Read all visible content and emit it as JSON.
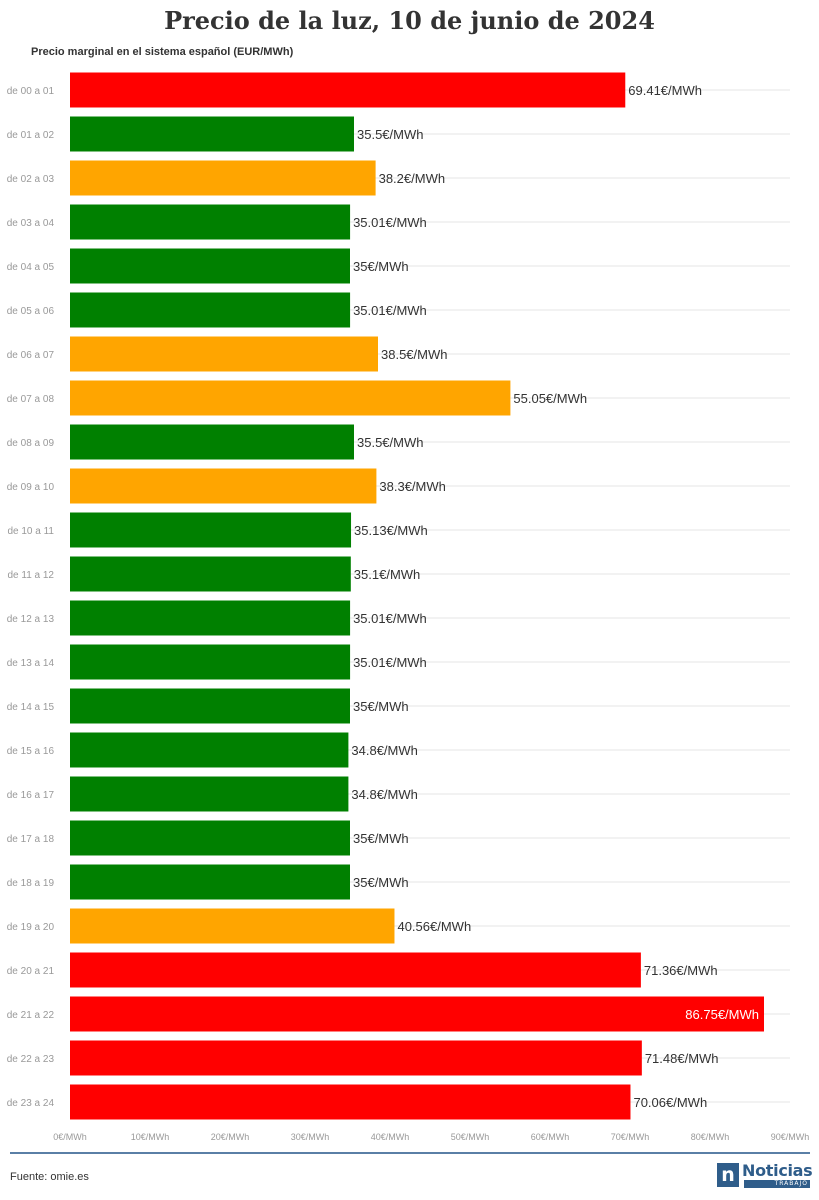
{
  "header": {
    "title": "Precio de la luz, 10 de junio de 2024",
    "subtitle": "Precio marginal en el sistema español (EUR/MWh)"
  },
  "footer": {
    "source": "Fuente: omie.es",
    "logo_mark": "n",
    "logo_word": "Noticias",
    "logo_sub": "TRABAJO"
  },
  "colors": {
    "high": "#ff0000",
    "medium": "#ffa500",
    "low": "#008000",
    "grid": "#e6e6e6",
    "tick": "#999999",
    "label": "#333333"
  },
  "chart_data": {
    "type": "bar",
    "orientation": "horizontal",
    "title": "Precio de la luz, 10 de junio de 2024",
    "subtitle": "Precio marginal en el sistema español (EUR/MWh)",
    "categories": [
      "de 00 a 01",
      "de 01 a 02",
      "de 02 a 03",
      "de 03 a 04",
      "de 04 a 05",
      "de 05 a 06",
      "de 06 a 07",
      "de 07 a 08",
      "de 08 a 09",
      "de 09 a 10",
      "de 10 a 11",
      "de 11 a 12",
      "de 12 a 13",
      "de 13 a 14",
      "de 14 a 15",
      "de 15 a 16",
      "de 16 a 17",
      "de 17 a 18",
      "de 18 a 19",
      "de 19 a 20",
      "de 20 a 21",
      "de 21 a 22",
      "de 22 a 23",
      "de 23 a 24"
    ],
    "values": [
      69.41,
      35.5,
      38.2,
      35.01,
      35,
      35.01,
      38.5,
      55.05,
      35.5,
      38.3,
      35.13,
      35.1,
      35.01,
      35.01,
      35,
      34.8,
      34.8,
      35,
      35,
      40.56,
      71.36,
      86.75,
      71.48,
      70.06
    ],
    "value_labels": [
      "69.41€/MWh",
      "35.5€/MWh",
      "38.2€/MWh",
      "35.01€/MWh",
      "35€/MWh",
      "35.01€/MWh",
      "38.5€/MWh",
      "55.05€/MWh",
      "35.5€/MWh",
      "38.3€/MWh",
      "35.13€/MWh",
      "35.1€/MWh",
      "35.01€/MWh",
      "35.01€/MWh",
      "35€/MWh",
      "34.8€/MWh",
      "34.8€/MWh",
      "35€/MWh",
      "35€/MWh",
      "40.56€/MWh",
      "71.36€/MWh",
      "86.75€/MWh",
      "71.48€/MWh",
      "70.06€/MWh"
    ],
    "bar_colors": [
      "#ff0000",
      "#008000",
      "#ffa500",
      "#008000",
      "#008000",
      "#008000",
      "#ffa500",
      "#ffa500",
      "#008000",
      "#ffa500",
      "#008000",
      "#008000",
      "#008000",
      "#008000",
      "#008000",
      "#008000",
      "#008000",
      "#008000",
      "#008000",
      "#ffa500",
      "#ff0000",
      "#ff0000",
      "#ff0000",
      "#ff0000"
    ],
    "xlim": [
      0,
      90
    ],
    "x_ticks": [
      0,
      10,
      20,
      30,
      40,
      50,
      60,
      70,
      80,
      90
    ],
    "x_tick_labels": [
      "0€/MWh",
      "10€/MWh",
      "20€/MWh",
      "30€/MWh",
      "40€/MWh",
      "50€/MWh",
      "60€/MWh",
      "70€/MWh",
      "80€/MWh",
      "90€/MWh"
    ],
    "xlabel": "",
    "ylabel": "",
    "grid": true
  }
}
